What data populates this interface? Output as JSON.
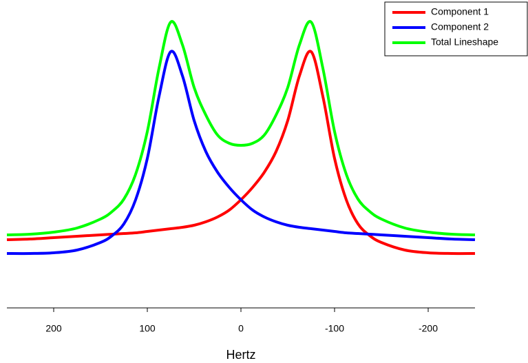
{
  "chart_data": {
    "type": "line",
    "x_label": "Hertz",
    "x": [
      250,
      225,
      200,
      175,
      150,
      137.5,
      125,
      112.5,
      100,
      87.5,
      75,
      62.5,
      50,
      37.5,
      25,
      12.5,
      0,
      -12.5,
      -25,
      -37.5,
      -50,
      -62.5,
      -75,
      -87.5,
      -100,
      -112.5,
      -125,
      -137.5,
      -150,
      -175,
      -200,
      -225,
      -250
    ],
    "series": [
      {
        "name": "Component 1",
        "color": "#ff0000",
        "values": [
          99,
          100,
          102,
          104,
          106,
          107,
          108,
          109,
          111,
          113,
          115,
          117,
          120,
          125,
          132,
          142,
          157,
          175,
          197,
          227,
          272,
          337,
          372,
          307,
          217,
          157,
          122,
          105,
          95,
          84,
          80,
          79,
          79
        ]
      },
      {
        "name": "Component 2",
        "color": "#0000ff",
        "values": [
          79,
          79,
          80,
          84,
          95,
          105,
          122,
          157,
          217,
          307,
          372,
          337,
          272,
          227,
          197,
          175,
          157,
          142,
          132,
          125,
          120,
          117,
          115,
          113,
          111,
          109,
          108,
          107,
          106,
          104,
          102,
          100,
          99
        ]
      },
      {
        "name": "Total Lineshape",
        "color": "#00ff00",
        "values": [
          106,
          107,
          110,
          116,
          129,
          140,
          158,
          194,
          256,
          348,
          415,
          382,
          320,
          280,
          251,
          239,
          236,
          239,
          251,
          280,
          320,
          382,
          415,
          348,
          256,
          194,
          158,
          140,
          129,
          116,
          110,
          107,
          106
        ]
      }
    ],
    "xlim": [
      250,
      -250
    ],
    "xticks": [
      200,
      100,
      0,
      -100,
      -200
    ],
    "ylim": [
      0,
      420
    ],
    "legend": "top-right"
  }
}
